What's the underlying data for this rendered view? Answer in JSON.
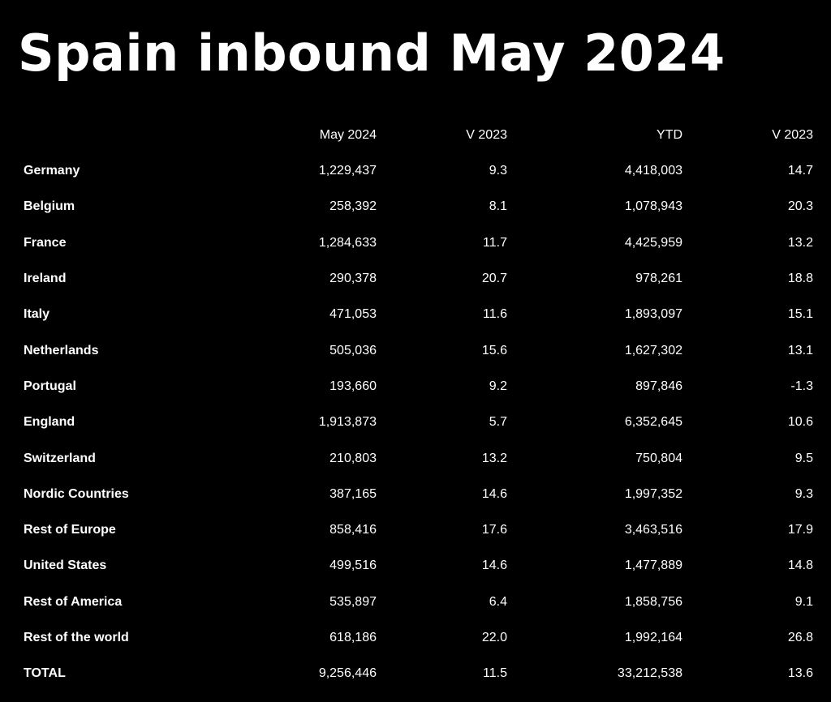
{
  "title": "Spain inbound May 2024",
  "columns": [
    "",
    "May 2024",
    "V 2023",
    "YTD",
    "V 2023"
  ],
  "rows": [
    {
      "country": "Germany",
      "may2024": "1,229,437",
      "v2023_month": "9.3",
      "ytd": "4,418,003",
      "v2023_ytd": "14.7"
    },
    {
      "country": "Belgium",
      "may2024": "258,392",
      "v2023_month": "8.1",
      "ytd": "1,078,943",
      "v2023_ytd": "20.3"
    },
    {
      "country": "France",
      "may2024": "1,284,633",
      "v2023_month": "11.7",
      "ytd": "4,425,959",
      "v2023_ytd": "13.2"
    },
    {
      "country": "Ireland",
      "may2024": "290,378",
      "v2023_month": "20.7",
      "ytd": "978,261",
      "v2023_ytd": "18.8"
    },
    {
      "country": "Italy",
      "may2024": "471,053",
      "v2023_month": "11.6",
      "ytd": "1,893,097",
      "v2023_ytd": "15.1"
    },
    {
      "country": "Netherlands",
      "may2024": "505,036",
      "v2023_month": "15.6",
      "ytd": "1,627,302",
      "v2023_ytd": "13.1"
    },
    {
      "country": "Portugal",
      "may2024": "193,660",
      "v2023_month": "9.2",
      "ytd": "897,846",
      "v2023_ytd": "-1.3"
    },
    {
      "country": "England",
      "may2024": "1,913,873",
      "v2023_month": "5.7",
      "ytd": "6,352,645",
      "v2023_ytd": "10.6"
    },
    {
      "country": "Switzerland",
      "may2024": "210,803",
      "v2023_month": "13.2",
      "ytd": "750,804",
      "v2023_ytd": "9.5"
    },
    {
      "country": "Nordic Countries",
      "may2024": "387,165",
      "v2023_month": "14.6",
      "ytd": "1,997,352",
      "v2023_ytd": "9.3"
    },
    {
      "country": "Rest of Europe",
      "may2024": "858,416",
      "v2023_month": "17.6",
      "ytd": "3,463,516",
      "v2023_ytd": "17.9"
    },
    {
      "country": "United States",
      "may2024": "499,516",
      "v2023_month": "14.6",
      "ytd": "1,477,889",
      "v2023_ytd": "14.8"
    },
    {
      "country": "Rest of America",
      "may2024": "535,897",
      "v2023_month": "6.4",
      "ytd": "1,858,756",
      "v2023_ytd": "9.1"
    },
    {
      "country": "Rest of the world",
      "may2024": "618,186",
      "v2023_month": "22.0",
      "ytd": "1,992,164",
      "v2023_ytd": "26.8"
    },
    {
      "country": "TOTAL",
      "may2024": "9,256,446",
      "v2023_month": "11.5",
      "ytd": "33,212,538",
      "v2023_ytd": "13.6"
    }
  ],
  "colors": {
    "background": "#000000",
    "text": "#ffffff"
  }
}
